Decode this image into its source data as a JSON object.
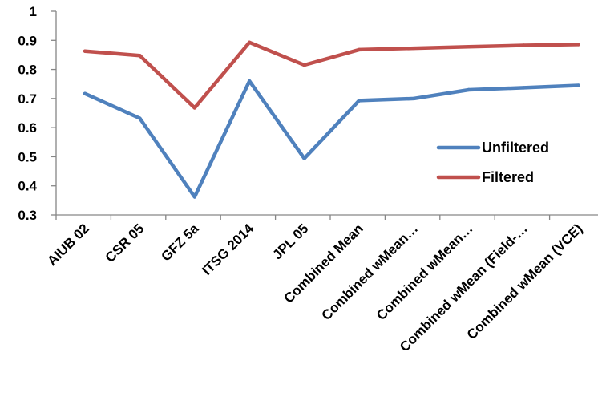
{
  "chart_data": {
    "type": "line",
    "categories": [
      "AIUB 02",
      "CSR 05",
      "GFZ 5a",
      "ITSG 2014",
      "JPL 05",
      "Combined Mean",
      "Combined wMean…",
      "Combined wMean…",
      "Combined wMean (Field-…",
      "Combined wMean (VCE)"
    ],
    "series": [
      {
        "name": "Unfiltered",
        "color": "#4F81BD",
        "values": [
          0.717,
          0.632,
          0.362,
          0.76,
          0.494,
          0.693,
          0.7,
          0.73,
          0.737,
          0.745
        ]
      },
      {
        "name": "Filtered",
        "color": "#C0504D",
        "values": [
          0.863,
          0.848,
          0.668,
          0.893,
          0.815,
          0.868,
          0.873,
          0.878,
          0.883,
          0.886
        ]
      }
    ],
    "ylim": [
      0.3,
      1
    ],
    "yticks": [
      "0.3",
      "0.4",
      "0.5",
      "0.6",
      "0.7",
      "0.8",
      "0.9",
      "1"
    ],
    "title": "",
    "xlabel": "",
    "ylabel": "",
    "grid": false,
    "legend_position": "right"
  }
}
